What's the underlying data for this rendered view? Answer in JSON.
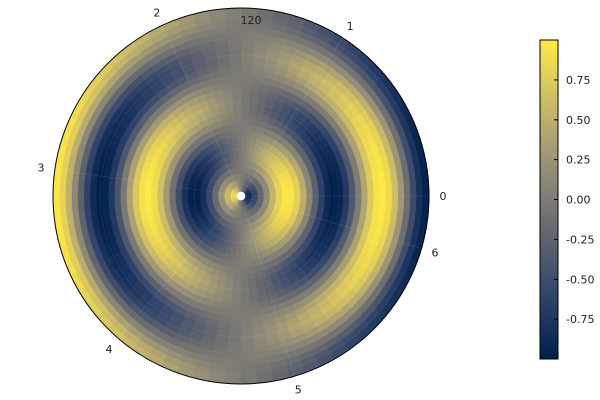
{
  "chart_data": {
    "type": "heatmap",
    "projection": "polar",
    "title": "",
    "colormap": "cividis",
    "colormap_stops": [
      "#00204c",
      "#31446b",
      "#666870",
      "#958f78",
      "#cbba69",
      "#ffe945"
    ],
    "angle_tick_labels": [
      "0",
      "1",
      "2",
      "3",
      "4",
      "5",
      "6"
    ],
    "radial_tick_labels": [
      "120"
    ],
    "radial_range": [
      0,
      120
    ],
    "theta_range": [
      0,
      6.2832
    ],
    "grid": true,
    "colorbar": {
      "range": [
        -1.0,
        1.0
      ],
      "tick_labels": [
        "0.75",
        "0.50",
        "0.25",
        "0.00",
        "-0.25",
        "-0.50",
        "-0.75"
      ]
    },
    "field": "sin(r * 2π / 60 − π/2) · cos(θ) — concentric rings modulated by angle (max along θ=0 inner ring, min along θ=π inner ring)"
  }
}
